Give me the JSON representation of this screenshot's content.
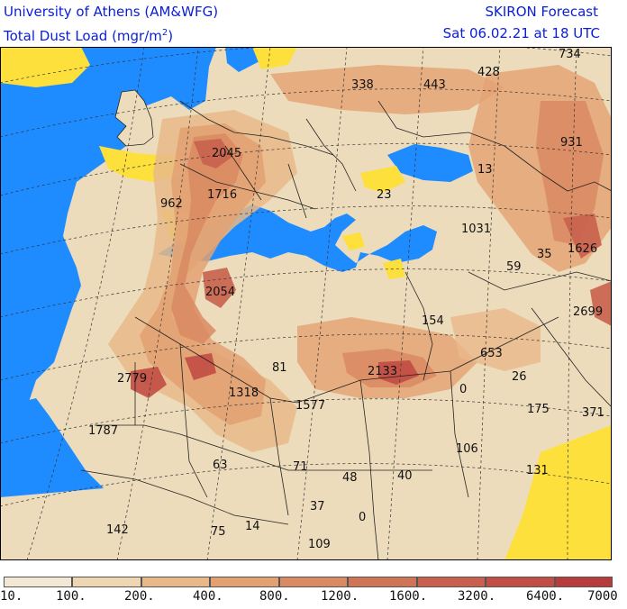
{
  "header": {
    "org": "University of Athens (AM&WFG)",
    "field_prefix": "Total Dust Load (mgr/m",
    "field_sup": "2",
    "field_suffix": ")",
    "product": "SKIRON Forecast",
    "valid_time": "Sat 06.02.21 at 18 UTC"
  },
  "values": [
    "338",
    "443",
    "428",
    "734",
    "2045",
    "931",
    "1716",
    "962",
    "13",
    "23",
    "1031",
    "1626",
    "59",
    "35",
    "2054",
    "2699",
    "154",
    "653",
    "2779",
    "81",
    "2133",
    "26",
    "1318",
    "0",
    "1577",
    "175",
    "371",
    "1787",
    "106",
    "63",
    "71",
    "48",
    "40",
    "131",
    "37",
    "142",
    "75",
    "14",
    "0",
    "109"
  ],
  "legend": {
    "labels": [
      "10.",
      "100.",
      "200.",
      "400.",
      "800.",
      "1200.",
      "1600.",
      "3200.",
      "6400.",
      "7000"
    ],
    "colors": [
      "#f2e8d4",
      "#eed7b0",
      "#e8b888",
      "#e3a172",
      "#d98a62",
      "#d07456",
      "#c8604d",
      "#c14d44",
      "#b83c3c"
    ]
  },
  "colors": {
    "sea": "#1e8cff",
    "low_dust_yellow": "#fde03c",
    "base_land": "#eddcbc",
    "header_text": "#0a1ed6"
  }
}
